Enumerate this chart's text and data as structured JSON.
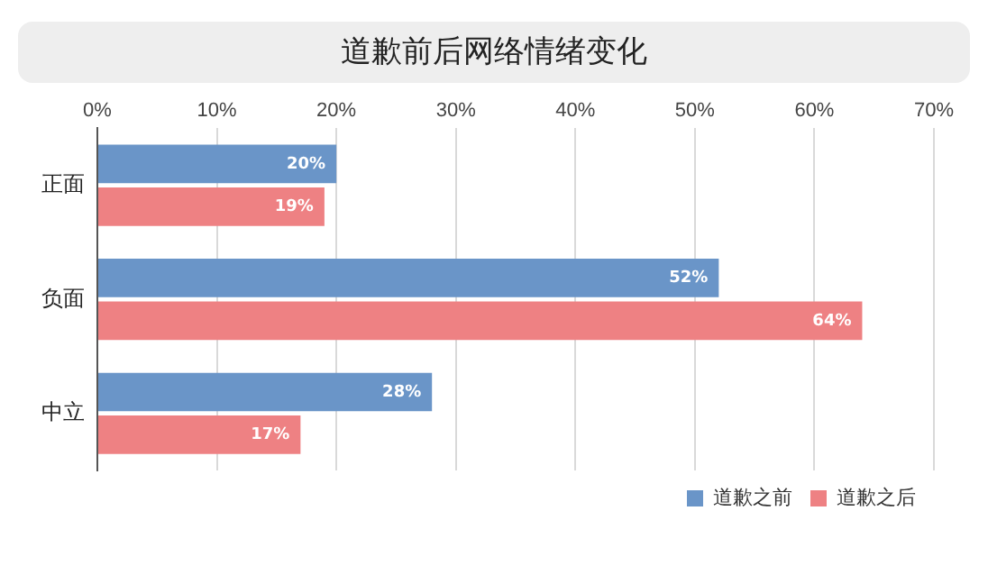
{
  "chart_data": {
    "type": "bar",
    "orientation": "horizontal",
    "title": "道歉前后网络情绪变化",
    "categories": [
      "正面",
      "负面",
      "中立"
    ],
    "series": [
      {
        "name": "道歉之前",
        "color": "#6a95c8",
        "values": [
          20,
          52,
          28
        ],
        "value_labels": [
          "20%",
          "52%",
          "28%"
        ]
      },
      {
        "name": "道歉之后",
        "color": "#ee8183",
        "values": [
          19,
          64,
          17
        ],
        "value_labels": [
          "19%",
          "64%",
          "17%"
        ]
      }
    ],
    "xlim": [
      0,
      70
    ],
    "xticks": [
      {
        "value": 0,
        "label": "0%"
      },
      {
        "value": 10,
        "label": "10%"
      },
      {
        "value": 20,
        "label": "20%"
      },
      {
        "value": 30,
        "label": "30%"
      },
      {
        "value": 40,
        "label": "40%"
      },
      {
        "value": 50,
        "label": "50%"
      },
      {
        "value": 60,
        "label": "60%"
      },
      {
        "value": 70,
        "label": "70%"
      }
    ],
    "grid": "x",
    "legend": "bottom right"
  }
}
